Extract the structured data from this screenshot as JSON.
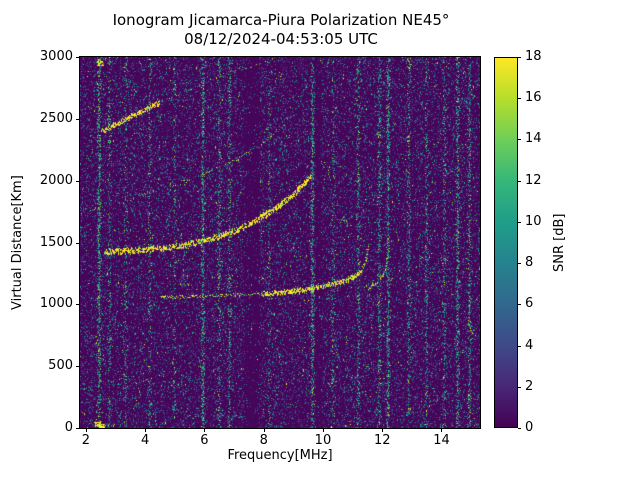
{
  "chart_data": {
    "type": "heatmap",
    "title": "Ionogram Jicamarca-Piura Polarization NE45°",
    "subtitle": "08/12/2024-04:53:05 UTC",
    "xlabel": "Frequency[MHz]",
    "ylabel": "Virtual Distance[Km]",
    "xlim": [
      1.8,
      15.3
    ],
    "ylim": [
      0,
      3000
    ],
    "xticks": [
      2,
      4,
      6,
      8,
      10,
      12,
      14
    ],
    "yticks": [
      0,
      500,
      1000,
      1500,
      2000,
      2500,
      3000
    ],
    "grid": false,
    "legend": "none",
    "background_color": "#450559",
    "colorbar": {
      "label": "SNR [dB]",
      "min": 0,
      "max": 18,
      "ticks": [
        0,
        2,
        4,
        6,
        8,
        10,
        12,
        14,
        16,
        18
      ],
      "colormap": "viridis",
      "colors": [
        "#440154",
        "#482878",
        "#3e4a89",
        "#31688e",
        "#26828e",
        "#1f9e89",
        "#35b779",
        "#6ece58",
        "#b5de2b",
        "#fde725"
      ]
    },
    "noise_palette": [
      "#482878",
      "#3e4a89",
      "#31688e",
      "#26828e",
      "#21918c",
      "#27ad81",
      "#5ec962",
      "#aadc32",
      "#fde725"
    ],
    "rfi_columns": [
      {
        "freq": 2.45,
        "strength": 2.5
      },
      {
        "freq": 2.8,
        "strength": 1.0
      },
      {
        "freq": 3.35,
        "strength": 0.8
      },
      {
        "freq": 4.15,
        "strength": 0.8
      },
      {
        "freq": 5.0,
        "strength": 0.7
      },
      {
        "freq": 5.95,
        "strength": 2.2
      },
      {
        "freq": 6.5,
        "strength": 1.0
      },
      {
        "freq": 6.85,
        "strength": 1.2
      },
      {
        "freq": 8.2,
        "strength": 0.7
      },
      {
        "freq": 9.65,
        "strength": 2.0
      },
      {
        "freq": 10.35,
        "strength": 0.8
      },
      {
        "freq": 11.2,
        "strength": 1.2
      },
      {
        "freq": 11.9,
        "strength": 1.5
      },
      {
        "freq": 12.2,
        "strength": 2.2
      },
      {
        "freq": 12.9,
        "strstrength_note": "",
        "strength": 1.2
      },
      {
        "freq": 13.5,
        "strength": 1.0
      },
      {
        "freq": 14.1,
        "strength": 1.0
      },
      {
        "freq": 14.55,
        "strength": 2.0
      },
      {
        "freq": 14.95,
        "strength": 1.5
      }
    ],
    "quiet_bands": [
      [
        7.35,
        7.85
      ],
      [
        9.75,
        9.95
      ]
    ],
    "hot_spots": [
      {
        "freq": 2.4,
        "km": 30
      },
      {
        "freq": 2.55,
        "km": 12
      },
      {
        "freq": 2.48,
        "km": 2950
      }
    ],
    "traces": [
      {
        "name": "third-multiple-bright",
        "style": "strong",
        "width": 3,
        "points": [
          [
            2.55,
            2400
          ],
          [
            2.8,
            2430
          ],
          [
            3.1,
            2465
          ],
          [
            3.5,
            2515
          ],
          [
            4.0,
            2575
          ],
          [
            4.5,
            2635
          ]
        ]
      },
      {
        "name": "third-multiple-faint",
        "style": "faint",
        "width": 2,
        "points": [
          [
            4.5,
            2635
          ],
          [
            5.0,
            2690
          ],
          [
            5.5,
            2742
          ],
          [
            6.0,
            2792
          ],
          [
            6.5,
            2840
          ],
          [
            7.0,
            2884
          ],
          [
            7.5,
            2925
          ],
          [
            8.0,
            2963
          ],
          [
            8.45,
            3000
          ]
        ]
      },
      {
        "name": "second-multiple",
        "style": "faint",
        "width": 2,
        "points": [
          [
            3.85,
            1885
          ],
          [
            4.3,
            1915
          ],
          [
            4.8,
            1950
          ],
          [
            5.3,
            1990
          ],
          [
            5.8,
            2035
          ],
          [
            6.3,
            2085
          ],
          [
            6.8,
            2140
          ],
          [
            7.3,
            2205
          ],
          [
            7.8,
            2280
          ],
          [
            8.2,
            2350
          ],
          [
            8.6,
            2430
          ],
          [
            8.95,
            2530
          ]
        ]
      },
      {
        "name": "main-echo",
        "style": "strong",
        "width": 4,
        "points": [
          [
            2.65,
            1425
          ],
          [
            3.2,
            1432
          ],
          [
            3.8,
            1440
          ],
          [
            4.4,
            1452
          ],
          [
            5.0,
            1468
          ],
          [
            5.5,
            1488
          ],
          [
            6.0,
            1515
          ],
          [
            6.5,
            1550
          ],
          [
            7.0,
            1595
          ],
          [
            7.5,
            1650
          ],
          [
            8.0,
            1715
          ],
          [
            8.5,
            1795
          ],
          [
            9.0,
            1890
          ],
          [
            9.35,
            1965
          ],
          [
            9.6,
            2040
          ]
        ]
      },
      {
        "name": "one-hop-lead",
        "style": "mixed",
        "width": 2,
        "points": [
          [
            4.5,
            1057
          ],
          [
            5.0,
            1060
          ],
          [
            5.5,
            1063
          ],
          [
            6.0,
            1066
          ],
          [
            6.5,
            1070
          ],
          [
            7.0,
            1074
          ],
          [
            7.5,
            1079
          ],
          [
            8.0,
            1086
          ]
        ]
      },
      {
        "name": "one-hop-main",
        "style": "strong",
        "width": 3,
        "points": [
          [
            8.0,
            1086
          ],
          [
            8.5,
            1096
          ],
          [
            9.0,
            1108
          ],
          [
            9.5,
            1124
          ],
          [
            10.0,
            1146
          ],
          [
            10.4,
            1168
          ],
          [
            10.8,
            1198
          ],
          [
            11.1,
            1232
          ],
          [
            11.3,
            1272
          ]
        ]
      },
      {
        "name": "one-hop-cusp",
        "style": "mixed",
        "width": 2,
        "points": [
          [
            11.3,
            1272
          ],
          [
            11.4,
            1315
          ],
          [
            11.47,
            1375
          ],
          [
            11.51,
            1440
          ],
          [
            11.52,
            1470
          ]
        ]
      },
      {
        "name": "one-hop-double",
        "style": "faint",
        "width": 1,
        "points": [
          [
            9.6,
            1150
          ],
          [
            10.1,
            1168
          ],
          [
            10.6,
            1192
          ],
          [
            11.0,
            1222
          ],
          [
            11.3,
            1258
          ]
        ]
      },
      {
        "name": "x-mode-cusp",
        "style": "mixed",
        "width": 2,
        "points": [
          [
            11.55,
            1130
          ],
          [
            11.72,
            1152
          ],
          [
            11.88,
            1180
          ],
          [
            12.0,
            1220
          ],
          [
            12.1,
            1275
          ],
          [
            12.17,
            1345
          ],
          [
            12.2,
            1400
          ]
        ]
      }
    ]
  }
}
